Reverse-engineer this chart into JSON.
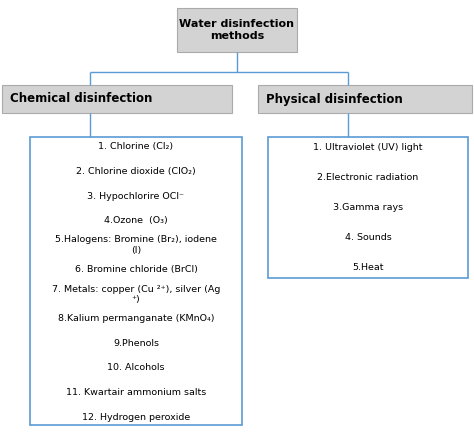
{
  "title": "Water disinfection\nmethods",
  "left_category": "Chemical disinfection",
  "right_category": "Physical disinfection",
  "chemical_items": [
    "1. Chlorine (Cl₂)",
    "2. Chlorine dioxide (ClO₂)",
    "3. Hypochlorire OCl⁻",
    "4.Ozone  (O₃)",
    "5.Halogens: Bromine (Br₂), iodene\n(I)",
    "6. Bromine chloride (BrCl)",
    "7. Metals: copper (Cu ²⁺), silver (Ag\n⁺)",
    "8.Kalium permanganate (KMnO₄)",
    "9.Phenols",
    "10. Alcohols",
    "11. Kwartair ammonium salts",
    "12. Hydrogen peroxide"
  ],
  "physical_items": [
    "1. Ultraviolet (UV) light",
    "2.Electronic radiation",
    "3.Gamma rays",
    "4. Sounds",
    "5.Heat"
  ],
  "bg_color": "#ffffff",
  "box_fill": "#d3d3d3",
  "list_box_color": "#5b9bd5",
  "line_color": "#5b9bd5",
  "text_color": "#000000",
  "title_fontsize": 8,
  "category_fontsize": 8.5,
  "item_fontsize": 6.8
}
